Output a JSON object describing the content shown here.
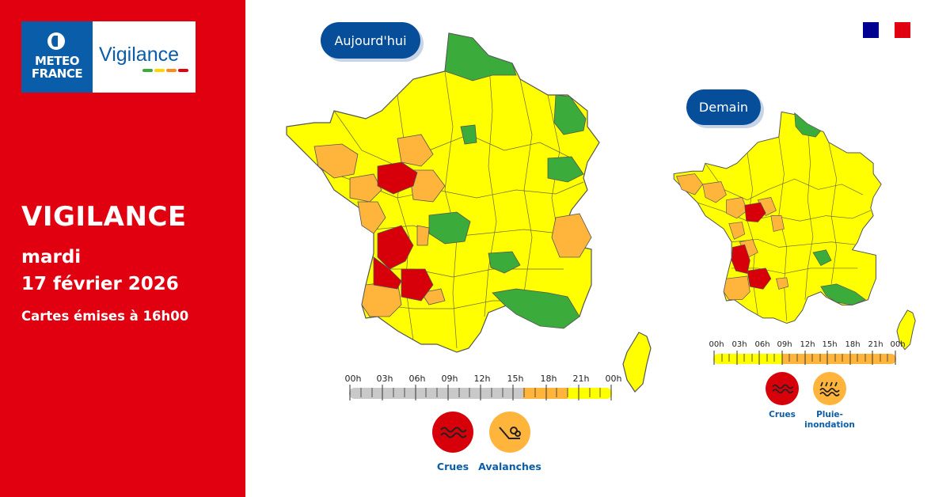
{
  "logo": {
    "brand_line1": "METEO",
    "brand_line2": "FRANCE",
    "product": "Vigilance"
  },
  "headline": "VIGILANCE",
  "day": "mardi",
  "date": "17 février 2026",
  "issued": "Cartes émises à 16h00",
  "today": {
    "label": "Aujourd'hui",
    "time_labels": [
      "00h",
      "03h",
      "06h",
      "09h",
      "12h",
      "15h",
      "18h",
      "21h",
      "00h"
    ],
    "timeline_segments": [
      {
        "level": "none",
        "from": "00h",
        "to": "16h"
      },
      {
        "level": "orange",
        "from": "16h",
        "to": "21h"
      },
      {
        "level": "yellow",
        "from": "21h",
        "to": "00h"
      }
    ],
    "phenomena": [
      {
        "name": "Crues",
        "level": "red",
        "icon": "flood-waves-icon"
      },
      {
        "name": "Avalanches",
        "level": "orange",
        "icon": "avalanche-icon"
      }
    ]
  },
  "tomorrow": {
    "label": "Demain",
    "time_labels": [
      "00h",
      "03h",
      "06h",
      "09h",
      "12h",
      "15h",
      "18h",
      "21h",
      "00h"
    ],
    "timeline_segments": [
      {
        "level": "yellow",
        "from": "00h",
        "to": "09h"
      },
      {
        "level": "orange",
        "from": "09h",
        "to": "00h"
      }
    ],
    "phenomena": [
      {
        "name": "Crues",
        "level": "red",
        "icon": "flood-waves-icon"
      },
      {
        "name": "Pluie-\ninondation",
        "level": "orange",
        "icon": "rain-flood-icon"
      }
    ]
  },
  "colors": {
    "panel_red": "#e1000f",
    "navy": "#064e9a",
    "vig_none": "#c9c9c9",
    "vig_green": "#3bab3b",
    "vig_yellow": "#ffff00",
    "vig_orange": "#ffb43c",
    "vig_red": "#d7000a",
    "border": "#555555"
  }
}
